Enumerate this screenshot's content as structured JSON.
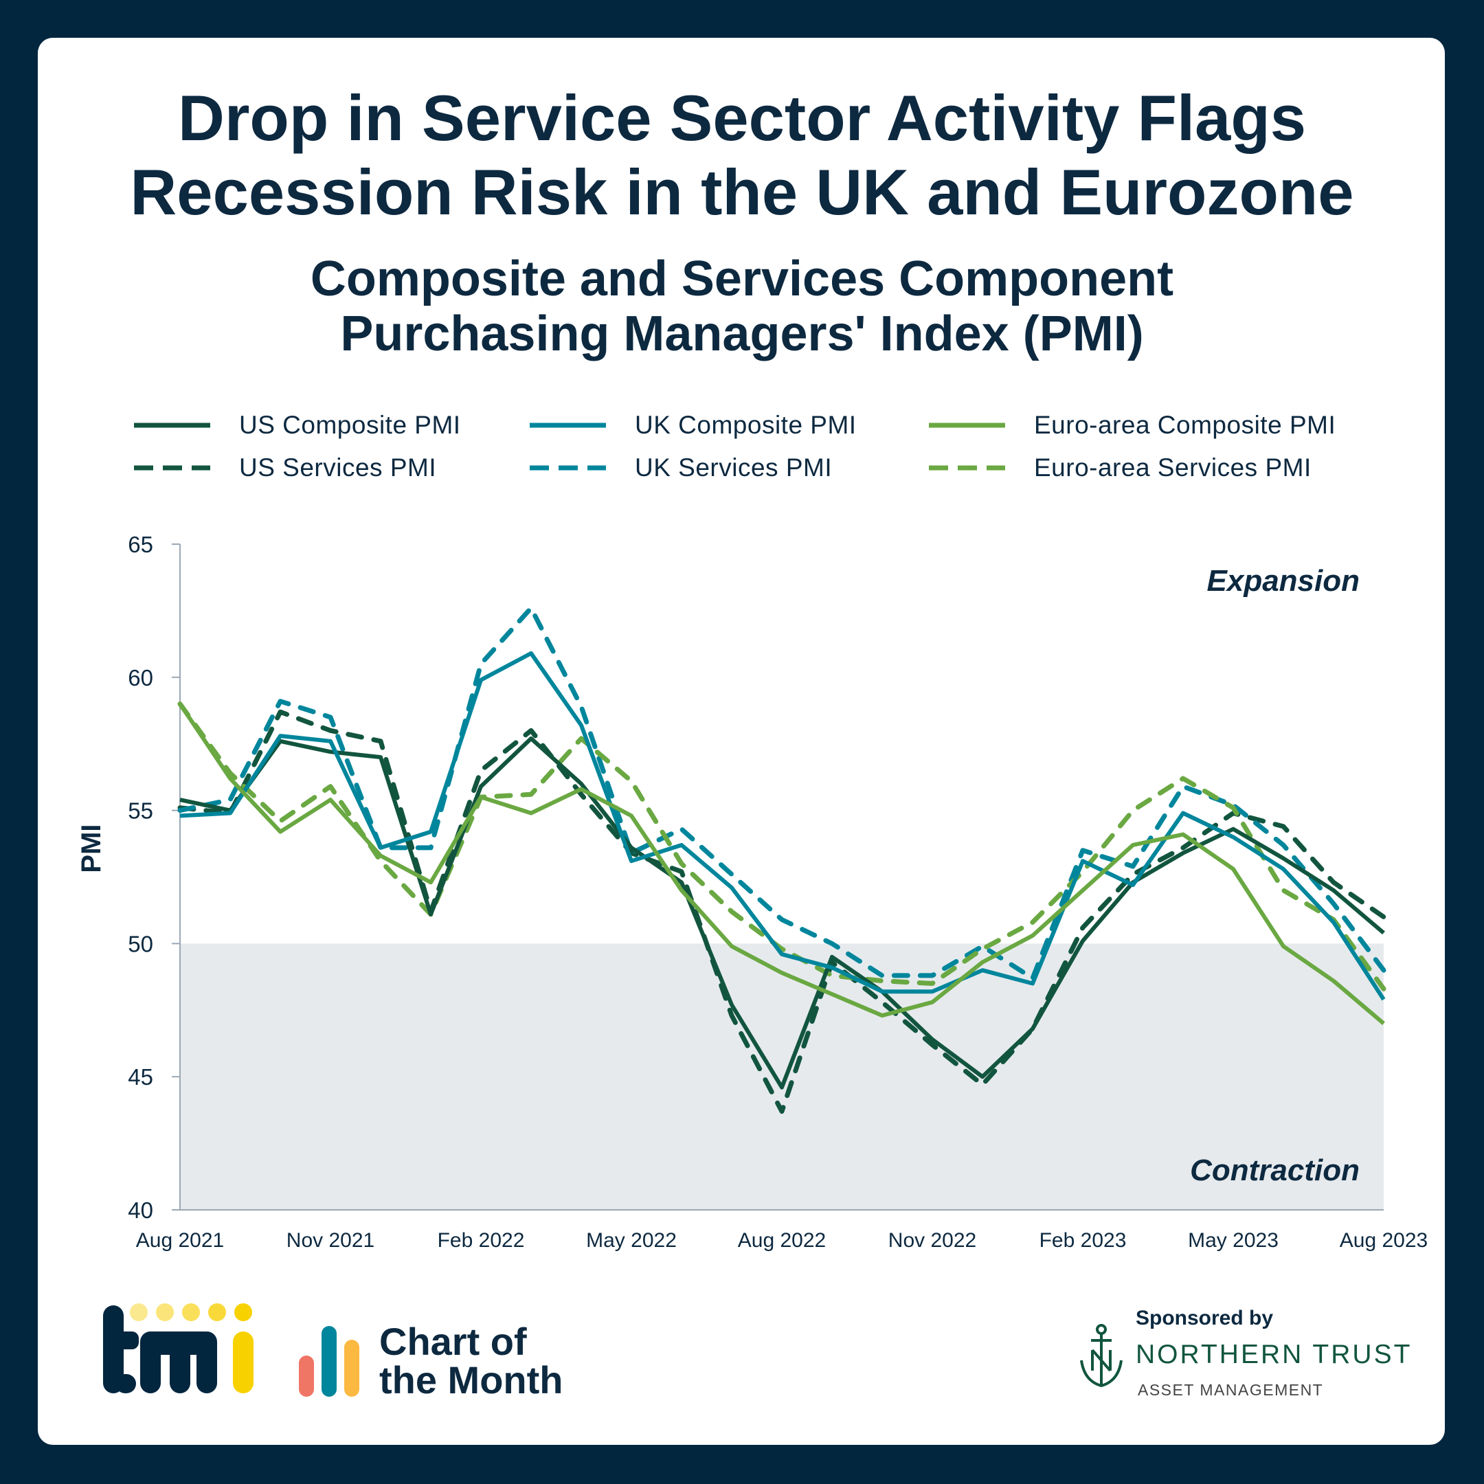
{
  "header": {
    "title_lines": [
      "Drop in Service Sector Activity Flags",
      "Recession Risk in the UK and Eurozone"
    ],
    "subtitle_lines": [
      "Composite and Services Component",
      "Purchasing Managers' Index (PMI)"
    ]
  },
  "colors": {
    "us": "#12553f",
    "uk": "#00869c",
    "euro": "#6aa842",
    "contraction_fill": "#e6eaed",
    "background": "#03263f",
    "text": "#0d2940"
  },
  "chart_data": {
    "type": "line",
    "ylabel": "PMI",
    "xlabel": "",
    "ylim": [
      40,
      65
    ],
    "yticks": [
      40,
      45,
      50,
      55,
      60,
      65
    ],
    "x": [
      "Aug 2021",
      "Sep 2021",
      "Oct 2021",
      "Nov 2021",
      "Dec 2021",
      "Jan 2022",
      "Feb 2022",
      "Mar 2022",
      "Apr 2022",
      "May 2022",
      "Jun 2022",
      "Jul 2022",
      "Aug 2022",
      "Sep 2022",
      "Oct 2022",
      "Nov 2022",
      "Dec 2022",
      "Jan 2023",
      "Feb 2023",
      "Mar 2023",
      "Apr 2023",
      "May 2023",
      "Jun 2023",
      "Jul 2023",
      "Aug 2023"
    ],
    "xtick_labels": [
      "Aug 2021",
      "Nov 2021",
      "Feb 2022",
      "May 2022",
      "Aug 2022",
      "Nov 2022",
      "Feb 2023",
      "May 2023",
      "Aug 2023"
    ],
    "annotations": [
      "Expansion",
      "Contraction"
    ],
    "shaded_band": {
      "from": 40,
      "to": 50
    },
    "grid": false,
    "legend_placement": "top",
    "series": [
      {
        "name": "US Composite PMI",
        "color": "#12553f",
        "dash": false,
        "values": [
          55.4,
          55.0,
          57.6,
          57.2,
          57.0,
          51.1,
          55.9,
          57.7,
          56.0,
          53.6,
          52.3,
          47.7,
          44.6,
          49.5,
          48.2,
          46.4,
          45.0,
          46.8,
          50.1,
          52.3,
          53.4,
          54.3,
          53.2,
          52.0,
          50.4
        ]
      },
      {
        "name": "UK Composite PMI",
        "color": "#00869c",
        "dash": false,
        "values": [
          54.8,
          54.9,
          57.8,
          57.6,
          53.6,
          54.2,
          59.9,
          60.9,
          58.2,
          53.1,
          53.7,
          52.1,
          49.6,
          49.1,
          48.2,
          48.2,
          49.0,
          48.5,
          53.1,
          52.2,
          54.9,
          54.0,
          52.8,
          50.8,
          47.9
        ]
      },
      {
        "name": "Euro-area Composite PMI",
        "color": "#6aa842",
        "dash": false,
        "values": [
          59.0,
          56.2,
          54.2,
          55.4,
          53.3,
          52.3,
          55.5,
          54.9,
          55.8,
          54.8,
          52.0,
          49.9,
          48.9,
          48.1,
          47.3,
          47.8,
          49.3,
          50.3,
          52.0,
          53.7,
          54.1,
          52.8,
          49.9,
          48.6,
          47.0
        ]
      },
      {
        "name": "US Services PMI",
        "color": "#12553f",
        "dash": true,
        "values": [
          55.1,
          54.9,
          58.7,
          58.0,
          57.6,
          51.2,
          56.5,
          58.0,
          55.6,
          53.4,
          52.7,
          47.3,
          43.7,
          49.3,
          47.8,
          46.2,
          44.7,
          46.8,
          50.6,
          52.6,
          53.6,
          54.9,
          54.4,
          52.3,
          51.0
        ]
      },
      {
        "name": "UK Services PMI",
        "color": "#00869c",
        "dash": true,
        "values": [
          55.0,
          55.4,
          59.1,
          58.5,
          53.6,
          53.6,
          60.5,
          62.6,
          58.9,
          53.4,
          54.3,
          52.6,
          50.9,
          50.0,
          48.8,
          48.8,
          49.9,
          48.7,
          53.5,
          52.9,
          55.9,
          55.2,
          53.7,
          51.5,
          49.0
        ]
      },
      {
        "name": "Euro-area Services PMI",
        "color": "#6aa842",
        "dash": true,
        "values": [
          59.0,
          56.4,
          54.6,
          55.9,
          53.1,
          51.1,
          55.5,
          55.6,
          57.7,
          56.1,
          53.0,
          51.2,
          49.8,
          48.8,
          48.6,
          48.5,
          49.8,
          50.8,
          52.7,
          55.0,
          56.2,
          55.1,
          52.0,
          50.9,
          48.3
        ]
      }
    ]
  },
  "footer": {
    "logo_text": "tmi",
    "chart_of_month_lines": [
      "Chart of",
      "the Month"
    ],
    "sponsored_by": "Sponsored by",
    "sponsor_name": "NORTHERN TRUST",
    "sponsor_division": "ASSET MANAGEMENT"
  }
}
